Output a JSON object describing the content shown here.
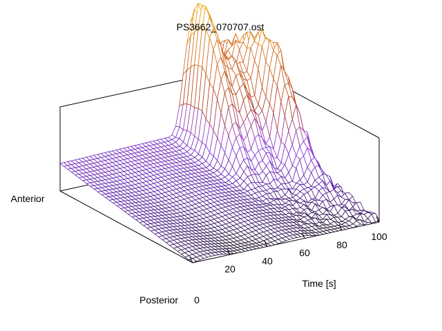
{
  "chart_data": {
    "type": "surface",
    "title": "PS3662_070707.ost",
    "xlabel": "Time [s]",
    "ylabel_front": "Posterior",
    "ylabel_back": "Anterior",
    "xlim": [
      0,
      100
    ],
    "xticks": [
      0,
      20,
      40,
      60,
      80,
      100
    ],
    "z_ticks_shown": false,
    "colormap": [
      "#1a1026",
      "#5a1fa8",
      "#8c34e0",
      "#b4431d",
      "#d2691e",
      "#f0b000"
    ],
    "surface": {
      "time_samples": 51,
      "position_samples": 36,
      "description_values": {
        "baseline_level_anterior": 0.35,
        "baseline_level_posterior": 0.0,
        "peaks": [
          {
            "time": 68,
            "position": 0.15,
            "height": 1.0
          },
          {
            "time": 72,
            "position": 0.05,
            "height": 1.05
          },
          {
            "time": 78,
            "position": 0.2,
            "height": 0.9
          },
          {
            "time": 85,
            "position": 0.1,
            "height": 0.95
          },
          {
            "time": 90,
            "position": 0.3,
            "height": 1.1
          },
          {
            "time": 95,
            "position": 0.35,
            "height": 0.65
          }
        ]
      }
    }
  }
}
